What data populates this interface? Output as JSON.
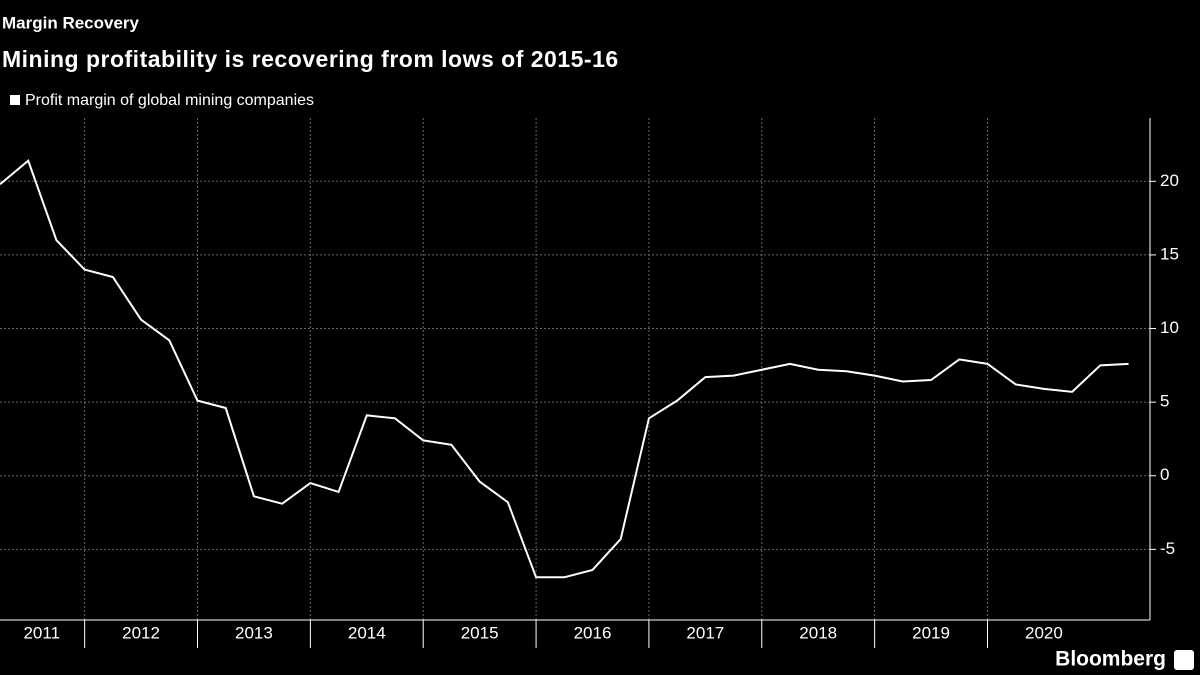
{
  "chart_data": {
    "type": "line",
    "title": "Margin Recovery",
    "subtitle": "Mining profitability is recovering from lows of 2015-16",
    "source": "Bloomberg",
    "x": [
      2011.25,
      2011.5,
      2011.75,
      2012,
      2012.25,
      2012.5,
      2012.75,
      2013,
      2013.25,
      2013.5,
      2013.75,
      2014,
      2014.25,
      2014.5,
      2014.75,
      2015,
      2015.25,
      2015.5,
      2015.75,
      2016,
      2016.25,
      2016.5,
      2016.75,
      2017,
      2017.25,
      2017.5,
      2017.75,
      2018,
      2018.25,
      2018.5,
      2018.75,
      2019,
      2019.25,
      2019.5,
      2019.75,
      2020,
      2020.25,
      2020.5,
      2020.75,
      2021,
      2021.25
    ],
    "series": [
      {
        "name": "Profit margin of global mining companies",
        "color": "#ffffff",
        "values": [
          19.8,
          21.4,
          16,
          14,
          13.5,
          10.6,
          9.2,
          5.1,
          4.6,
          -1.4,
          -1.9,
          -0.5,
          -1.1,
          4.1,
          3.9,
          2.4,
          2.1,
          -0.4,
          -1.8,
          -6.9,
          -6.9,
          -6.4,
          -4.3,
          3.9,
          5.1,
          6.7,
          6.8,
          7.2,
          7.6,
          7.2,
          7.1,
          6.8,
          6.4,
          6.5,
          7.9,
          7.6,
          6.2,
          5.9,
          5.7,
          7.5,
          7.6
        ]
      }
    ],
    "xlim": [
      2011.25,
      2021.44
    ],
    "xticks": [
      {
        "value": 2011.62,
        "label": "2011"
      },
      {
        "value": 2012.5,
        "label": "2012"
      },
      {
        "value": 2013.5,
        "label": "2013"
      },
      {
        "value": 2014.5,
        "label": "2014"
      },
      {
        "value": 2015.5,
        "label": "2015"
      },
      {
        "value": 2016.5,
        "label": "2016"
      },
      {
        "value": 2017.5,
        "label": "2017"
      },
      {
        "value": 2018.5,
        "label": "2018"
      },
      {
        "value": 2019.5,
        "label": "2019"
      },
      {
        "value": 2020.5,
        "label": "2020"
      }
    ],
    "ylim": [
      -9.8,
      24.3
    ],
    "yticks": [
      -5,
      0,
      5,
      10,
      15,
      20
    ],
    "grid": true,
    "legend": "top-left"
  }
}
